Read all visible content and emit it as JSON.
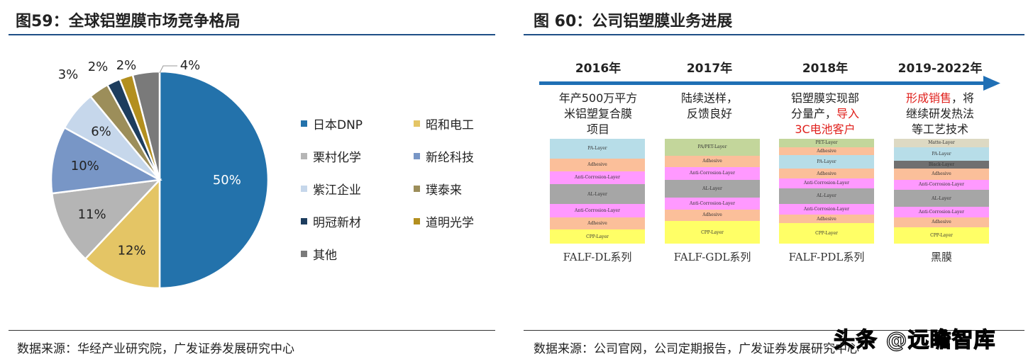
{
  "left": {
    "title": "图59：全球铝塑膜市场竞争格局",
    "source": "数据来源：华经产业研究院，广发证券发展研究中心"
  },
  "right": {
    "title": "图 60：公司铝塑膜业务进展",
    "source": "数据来源：公司官网，公司定期报告，广发证券发展研究中心"
  },
  "watermark": "头条 @远瞻智库",
  "chart_data": {
    "type": "pie",
    "title": "",
    "slices": [
      {
        "name": "日本DNP",
        "value": 50,
        "label": "50%",
        "color": "#2372ab"
      },
      {
        "name": "昭和电工",
        "value": 12,
        "label": "12%",
        "color": "#e4c565"
      },
      {
        "name": "栗村化学",
        "value": 11,
        "label": "11%",
        "color": "#b5b5b5"
      },
      {
        "name": "新纶科技",
        "value": 10,
        "label": "10%",
        "color": "#7896c6"
      },
      {
        "name": "紫江企业",
        "value": 6,
        "label": "6%",
        "color": "#c6d7eb"
      },
      {
        "name": "璞泰来",
        "value": 3,
        "label": "3%",
        "color": "#9c8e5a"
      },
      {
        "name": "明冠新材",
        "value": 2,
        "label": "2%",
        "color": "#1d3d5e"
      },
      {
        "name": "道明光学",
        "value": 2,
        "label": "2%",
        "color": "#b38f1f"
      },
      {
        "name": "其他",
        "value": 4,
        "label": "4%",
        "color": "#7a7a7a"
      }
    ],
    "legend": "right"
  },
  "timeline": {
    "arrow_color": "#1f6fb5",
    "stages": [
      {
        "year": "2016年",
        "desc": [
          "年产500万平方",
          "米铝塑复合膜",
          "项目"
        ],
        "series": "FALF-DL系列",
        "layers": [
          [
            "PA-Layer",
            "#b7dde8",
            27
          ],
          [
            "Adhesive",
            "#fbbf9a",
            17
          ],
          [
            "Anti-Corrosion-Layer",
            "#ff99ff",
            18
          ],
          [
            "AL-Layer",
            "#a6a6a6",
            27
          ],
          [
            "Anti-Corrosion-Layer",
            "#ff99ff",
            18
          ],
          [
            "Adhesive",
            "#fbbf9a",
            17
          ],
          [
            "CPP-Layer",
            "#ffff66",
            19
          ]
        ]
      },
      {
        "year": "2017年",
        "desc": [
          "陆续送样，",
          "反馈良好"
        ],
        "series": "FALF-GDL系列",
        "layers": [
          [
            "PA/PET-Layer",
            "#c3d69b",
            23
          ],
          [
            "Adhesive",
            "#fbbf9a",
            16
          ],
          [
            "Anti-Corrosion-Layer",
            "#ff99ff",
            17
          ],
          [
            "AL-Layer",
            "#a6a6a6",
            25
          ],
          [
            "Anti-Corrosion-Layer",
            "#ff99ff",
            16
          ],
          [
            "Adhesive",
            "#fbbf9a",
            16
          ],
          [
            "CPP-Layer",
            "#ffff66",
            31
          ]
        ]
      },
      {
        "year": "2018年",
        "desc": [
          "铝塑膜实现部",
          "分量产，导入",
          "3C电池客户"
        ],
        "red_from": "导入",
        "series": "FALF-PDL系列",
        "layers": [
          [
            "PET-Layer",
            "#c3d69b",
            11
          ],
          [
            "Adhesive",
            "#fbbf9a",
            11
          ],
          [
            "PA-Layer",
            "#b7dde8",
            18
          ],
          [
            "Adhesive",
            "#fbbf9a",
            13
          ],
          [
            "Anti-Corrosion-Layer",
            "#ff99ff",
            13
          ],
          [
            "AL-Layer",
            "#a6a6a6",
            21
          ],
          [
            "Anti-Corrosion-Layer",
            "#ff99ff",
            14
          ],
          [
            "Adhesive",
            "#fbbf9a",
            12
          ],
          [
            "CPP-Layer",
            "#ffff66",
            27
          ]
        ]
      },
      {
        "year": "2019-2022年",
        "desc": [
          "形成销售，将",
          "继续研发热法",
          "等工艺技术"
        ],
        "series": "黑膜",
        "layers": [
          [
            "Matte-Layer",
            "#ddd9c3",
            11
          ],
          [
            "PA-Layer",
            "#b7dde8",
            18
          ],
          [
            "Black-Layer",
            "#707070",
            10
          ],
          [
            "Adhesive",
            "#fbbf9a",
            15
          ],
          [
            "Anti-Corrosion-Layer",
            "#ff99ff",
            14
          ],
          [
            "AL-Layer",
            "#a6a6a6",
            22
          ],
          [
            "Anti-Corrosion-Layer",
            "#ff99ff",
            14
          ],
          [
            "Adhesive",
            "#fbbf9a",
            13
          ],
          [
            "CPP-Layer",
            "#ffff66",
            22
          ]
        ]
      }
    ]
  }
}
